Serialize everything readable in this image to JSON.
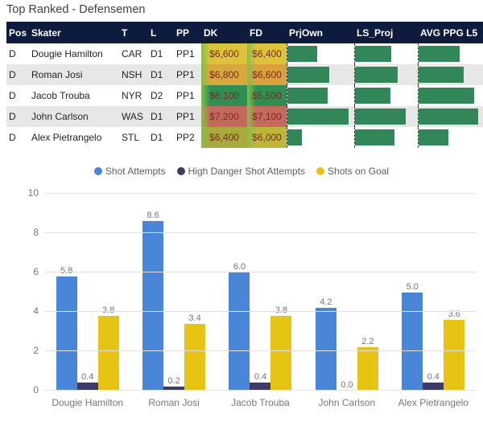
{
  "title": "Top Ranked - Defensemen",
  "colors": {
    "header_bg": "#0d1b3e",
    "table_databar_green": "#318757",
    "money_text": "#7a2b20",
    "money_edge_green": "#86bd4b"
  },
  "table": {
    "columns": [
      "Pos",
      "Skater",
      "T",
      "L",
      "PP",
      "DK",
      "FD",
      "PrjOwn",
      "LS_Proj",
      "AVG PPG L5"
    ],
    "rows": [
      {
        "pos": "D",
        "skater": "Dougie Hamilton",
        "t": "CAR",
        "l": "D1",
        "pp": "PP1",
        "dk": "$6,600",
        "fd": "$6,400",
        "dk_color": "#dcc43a",
        "fd_color": "#dcc43a",
        "prjown_pct": 44,
        "ls_proj_pct": 58,
        "avg_ppg_pct": 64
      },
      {
        "pos": "D",
        "skater": "Roman Josi",
        "t": "NSH",
        "l": "D1",
        "pp": "PP1",
        "dk": "$6,800",
        "fd": "$6,600",
        "dk_color": "#d8a83c",
        "fd_color": "#dba23c",
        "prjown_pct": 63,
        "ls_proj_pct": 68,
        "avg_ppg_pct": 70
      },
      {
        "pos": "D",
        "skater": "Jacob Trouba",
        "t": "NYR",
        "l": "D2",
        "pp": "PP1",
        "dk": "$6,100",
        "fd": "$5,500",
        "dk_color": "#2e8f55",
        "fd_color": "#2e8f55",
        "prjown_pct": 60,
        "ls_proj_pct": 56,
        "avg_ppg_pct": 86
      },
      {
        "pos": "D",
        "skater": "John Carlson",
        "t": "WAS",
        "l": "D1",
        "pp": "PP1",
        "dk": "$7,200",
        "fd": "$7,100",
        "dk_color": "#c5695c",
        "fd_color": "#c5695c",
        "prjown_pct": 92,
        "ls_proj_pct": 81,
        "avg_ppg_pct": 93
      },
      {
        "pos": "D",
        "skater": "Alex Pietrangelo",
        "t": "STL",
        "l": "D1",
        "pp": "PP2",
        "dk": "$6,400",
        "fd": "$6,000",
        "dk_color": "#a8aa3c",
        "fd_color": "#bcb739",
        "prjown_pct": 22,
        "ls_proj_pct": 63,
        "avg_ppg_pct": 46
      }
    ]
  },
  "chart_data": {
    "type": "bar",
    "title": "",
    "xlabel": "",
    "ylabel": "",
    "categories": [
      "Dougie Hamilton",
      "Roman Josi",
      "Jacob Trouba",
      "John Carlson",
      "Alex Pietrangelo"
    ],
    "series": [
      {
        "name": "Shot Attempts",
        "color": "#4a86d8",
        "values": [
          5.8,
          8.6,
          6.0,
          4.2,
          5.0
        ]
      },
      {
        "name": "High Danger Shot Attempts",
        "color": "#3d3a66",
        "values": [
          0.4,
          0.2,
          0.4,
          0.0,
          0.4
        ]
      },
      {
        "name": "Shots on Goal",
        "color": "#e7c313",
        "values": [
          3.8,
          3.4,
          3.8,
          2.2,
          3.6
        ]
      }
    ],
    "ylim": [
      0,
      10
    ],
    "yticks": [
      0,
      2,
      4,
      6,
      8,
      10
    ],
    "grid": true,
    "legend_position": "top"
  }
}
